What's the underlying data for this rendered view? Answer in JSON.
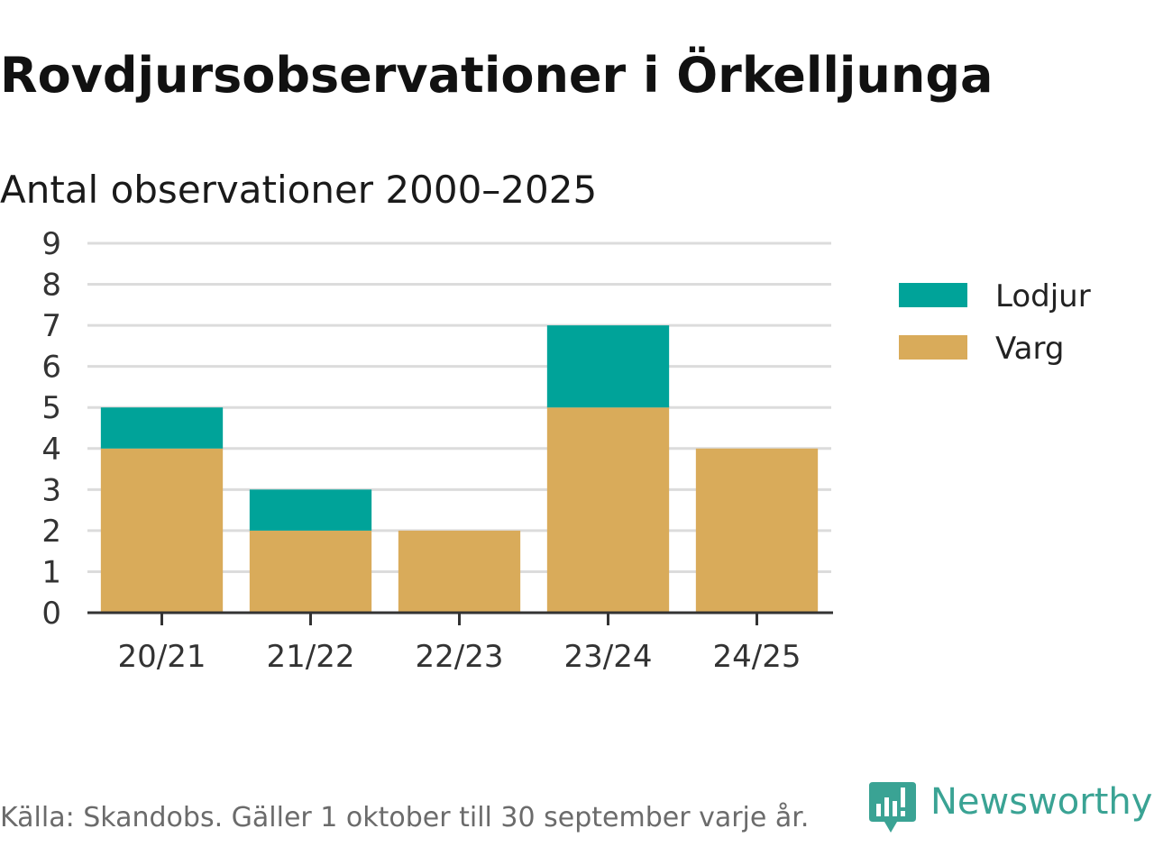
{
  "chart_data": {
    "type": "bar",
    "stacked": true,
    "title": "Rovdjursobservationer i Örkelljunga",
    "subtitle": "Antal observationer 2000–2025",
    "categories": [
      "20/21",
      "21/22",
      "22/23",
      "23/24",
      "24/25"
    ],
    "series": [
      {
        "name": "Varg",
        "color": "#d9ab5a",
        "values": [
          4,
          2,
          2,
          5,
          4
        ]
      },
      {
        "name": "Lodjur",
        "color": "#00a399",
        "values": [
          1,
          1,
          0,
          2,
          0
        ]
      }
    ],
    "legend_order": [
      "Lodjur",
      "Varg"
    ],
    "ylim": [
      0,
      9
    ],
    "yticks": [
      0,
      1,
      2,
      3,
      4,
      5,
      6,
      7,
      8,
      9
    ],
    "grid": true,
    "legend_position": "right",
    "xlabel": "",
    "ylabel": ""
  },
  "footer": {
    "source": "Källa: Skandobs. Gäller 1 oktober till 30 september varje år.",
    "brand": "Newsworthy",
    "brand_icon": "newsworthy-logo-icon",
    "brand_color": "#3aa394"
  }
}
